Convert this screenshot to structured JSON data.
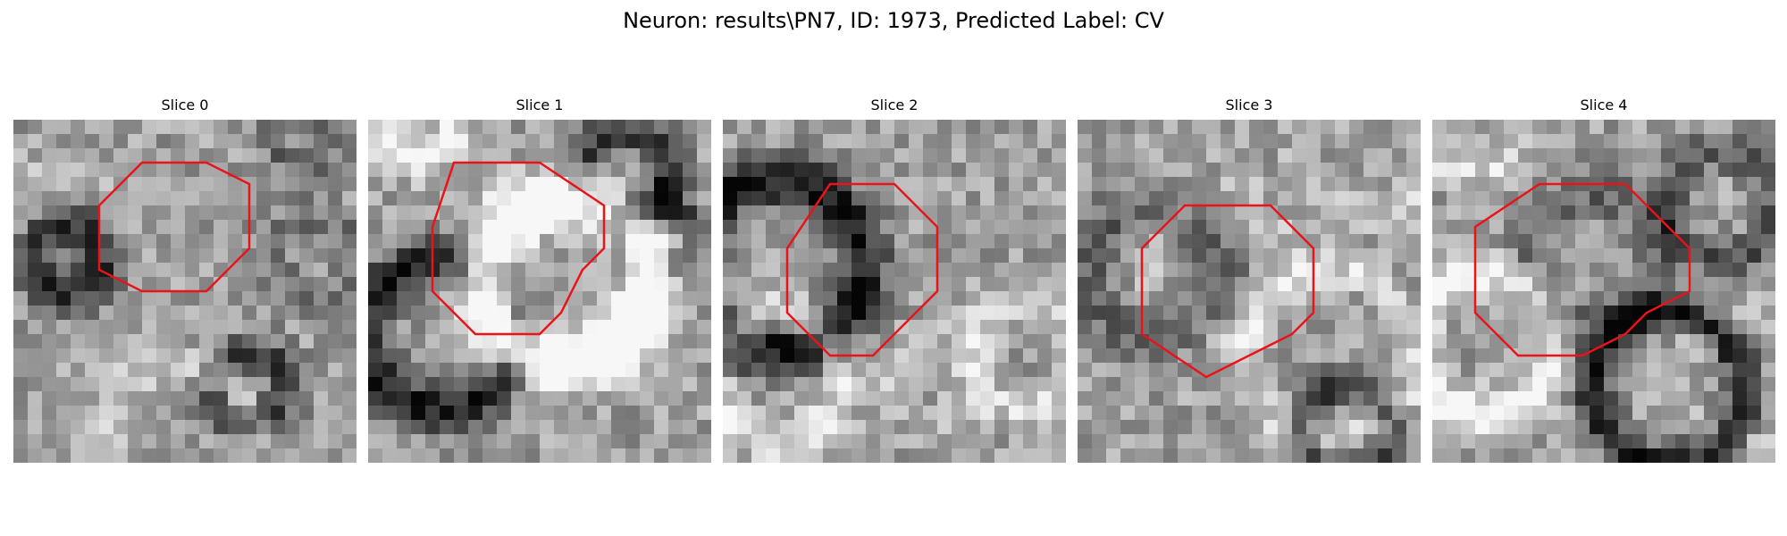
{
  "figure": {
    "title": "Neuron: results\\PN7, ID: 1973, Predicted Label: CV"
  },
  "contour_color": "#e8141a",
  "panels": [
    {
      "title": "Slice 0",
      "contour": [
        [
          6,
          2
        ],
        [
          9,
          2
        ],
        [
          11,
          3
        ],
        [
          11,
          6
        ],
        [
          9,
          8
        ],
        [
          6,
          8
        ],
        [
          4,
          7
        ],
        [
          4,
          4
        ]
      ],
      "field": [
        [
          2.5,
          4.2,
          0.05,
          2.0,
          0.4
        ],
        [
          2.5,
          6.5,
          -0.45,
          1.5,
          0.55
        ],
        [
          0.5,
          0.5,
          0.02,
          1.8,
          0.3
        ],
        [
          7.5,
          15.0,
          0.2,
          3.5,
          0.35
        ],
        [
          11.0,
          12.5,
          -0.35,
          1.6,
          0.45
        ],
        [
          13.5,
          0.5,
          -0.2,
          1.5,
          0.4
        ],
        [
          14.2,
          6.5,
          -0.18,
          2.0,
          0.4
        ]
      ]
    },
    {
      "title": "Slice 1",
      "contour": [
        [
          4,
          2
        ],
        [
          8,
          2
        ],
        [
          11,
          4
        ],
        [
          11,
          6
        ],
        [
          10,
          7
        ],
        [
          9,
          9
        ],
        [
          8,
          10
        ],
        [
          5,
          10
        ],
        [
          3,
          8
        ],
        [
          3,
          5
        ]
      ],
      "field": [
        [
          2.2,
          0.3,
          0.35,
          1.6,
          0.35
        ],
        [
          3.5,
          10.0,
          -0.5,
          3.5,
          0.6
        ],
        [
          9.3,
          7.5,
          0.7,
          3.8,
          0.75
        ],
        [
          12.0,
          2.5,
          -0.4,
          2.0,
          0.4
        ],
        [
          13.5,
          5.5,
          -0.3,
          1.6,
          0.4
        ]
      ]
    },
    {
      "title": "Slice 2",
      "contour": [
        [
          5,
          3
        ],
        [
          8,
          3
        ],
        [
          10,
          5
        ],
        [
          10,
          8
        ],
        [
          9,
          9
        ],
        [
          7,
          11
        ],
        [
          5,
          11
        ],
        [
          3,
          9
        ],
        [
          3,
          6
        ]
      ],
      "field": [
        [
          2.5,
          12.0,
          0.25,
          3.0,
          0.45
        ],
        [
          14.0,
          11.0,
          0.2,
          2.5,
          0.35
        ],
        [
          2.5,
          6.8,
          -0.55,
          4.0,
          0.7
        ],
        [
          9.8,
          12.0,
          0.1,
          2.0,
          0.5
        ]
      ]
    },
    {
      "title": "Slice 3",
      "contour": [
        [
          5,
          4
        ],
        [
          9,
          4
        ],
        [
          11,
          6
        ],
        [
          11,
          9
        ],
        [
          10,
          10
        ],
        [
          8,
          11
        ],
        [
          6,
          12
        ],
        [
          3,
          10
        ],
        [
          3,
          6
        ]
      ],
      "field": [
        [
          3.5,
          7.0,
          -0.25,
          3.0,
          0.8
        ],
        [
          6.5,
          6.8,
          0.1,
          3.2,
          0.7
        ],
        [
          11.8,
          11.0,
          0.2,
          4.0,
          0.3
        ],
        [
          13.5,
          1.5,
          0.15,
          3.0,
          0.4
        ],
        [
          12.5,
          14.5,
          -0.35,
          2.0,
          0.4
        ]
      ]
    },
    {
      "title": "Slice 4",
      "contour": [
        [
          5,
          3
        ],
        [
          9,
          3
        ],
        [
          11,
          5
        ],
        [
          12,
          6
        ],
        [
          12,
          8
        ],
        [
          10,
          9
        ],
        [
          9,
          10
        ],
        [
          7,
          11
        ],
        [
          4,
          11
        ],
        [
          2,
          9
        ],
        [
          2,
          5
        ]
      ],
      "field": [
        [
          2.4,
          10.5,
          0.35,
          3.2,
          0.55
        ],
        [
          7.5,
          6.5,
          -0.2,
          3.0,
          0.7
        ],
        [
          2.0,
          0.5,
          0.2,
          2.0,
          0.4
        ],
        [
          11.0,
          12.5,
          -0.5,
          3.5,
          0.35
        ],
        [
          13.5,
          4.0,
          -0.3,
          2.5,
          0.3
        ],
        [
          14.5,
          12.0,
          0.1,
          3.0,
          0.4
        ]
      ]
    }
  ]
}
